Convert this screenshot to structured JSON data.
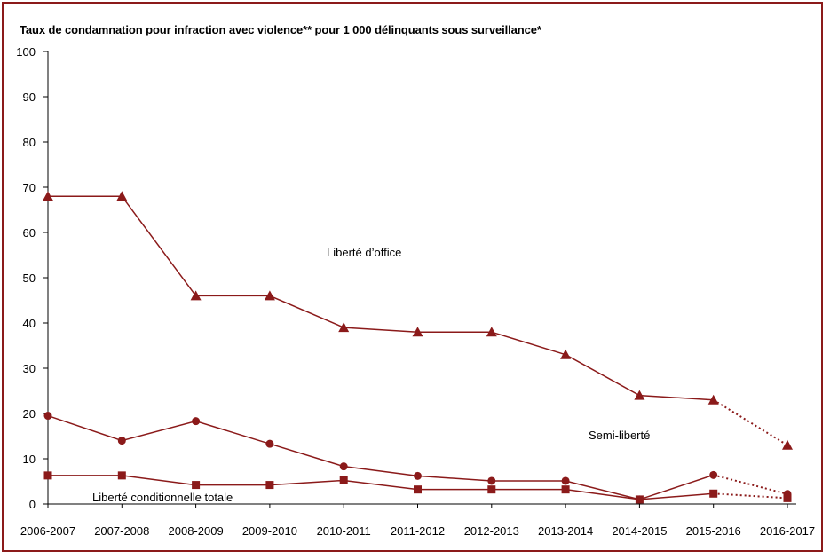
{
  "chart_data": {
    "type": "line",
    "title": "Taux de condamnation pour infraction avec violence** pour 1 000 délinquants sous surveillance*",
    "xlabel": "",
    "ylabel": "",
    "categories": [
      "2006-2007",
      "2007-2008",
      "2008-2009",
      "2009-2010",
      "2010-2011",
      "2011-2012",
      "2012-2013",
      "2013-2014",
      "2014-2015",
      "2015-2016",
      "2016-2017"
    ],
    "ylim": [
      0,
      100
    ],
    "yticks": [
      "0",
      "10",
      "20",
      "30",
      "40",
      "50",
      "60",
      "70",
      "80",
      "90",
      "100"
    ],
    "grid": false,
    "series": [
      {
        "name": "Liberté d'office",
        "marker": "triangle",
        "color": "#8b1a1a",
        "values": [
          68,
          68,
          46,
          46,
          39,
          38,
          38,
          33,
          24,
          23,
          13
        ],
        "dotted_last_segment": true
      },
      {
        "name": "Semi-liberté",
        "marker": "circle",
        "color": "#8b1a1a",
        "values": [
          19.5,
          14,
          18.3,
          13.3,
          8.3,
          6.2,
          5.1,
          5.1,
          1,
          6.4,
          2.2
        ],
        "dotted_last_segment": true
      },
      {
        "name": "Liberté conditionnelle totale",
        "marker": "square",
        "color": "#8b1a1a",
        "values": [
          6.3,
          6.3,
          4.2,
          4.2,
          5.2,
          3.2,
          3.2,
          3.2,
          1,
          2.3,
          1.3
        ],
        "dotted_last_segment": true
      }
    ],
    "annotations": [
      {
        "text": "Liberté d’office",
        "series": 0
      },
      {
        "text": "Semi-liberté",
        "series": 1
      },
      {
        "text": "Liberté conditionnelle totale",
        "series": 2
      }
    ]
  }
}
